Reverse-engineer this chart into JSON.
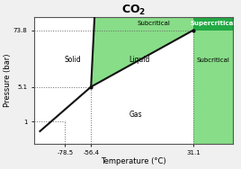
{
  "title": "CO",
  "title_sub": "2",
  "xlabel": "Temperature (°C)",
  "ylabel": "Pressure (bar)",
  "background_color": "#f0f0f0",
  "plot_bg_color": "#ffffff",
  "border_color": "#555555",
  "light_green": "#88dd88",
  "dark_green": "#22aa44",
  "triple_point": [
    -56.4,
    5.1
  ],
  "critical_point": [
    31.1,
    73.8
  ],
  "xmin": -105,
  "xmax": 65,
  "ymin": 0.35,
  "ymax": 135,
  "x_ticks": [
    -78.5,
    -56.4,
    31.1
  ],
  "y_ticks": [
    1,
    5.1,
    73.8
  ],
  "label_solid": "Solid",
  "label_liquid": "Liquid",
  "label_gas": "Gas",
  "label_subcritical_top": "Subcritical",
  "label_supercritical": "Supercritical",
  "label_subcritical_bottom": "Subcritical",
  "dotted_color": "#666666",
  "curve_color": "#111111",
  "point_color": "#111111",
  "sublimation_exponent": 0.048
}
